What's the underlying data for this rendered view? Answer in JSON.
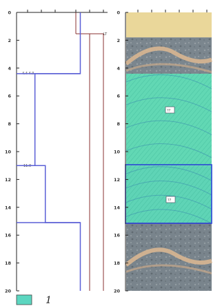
{
  "depth_axis": {
    "ticks": [
      "0",
      "2",
      "4",
      "6",
      "8",
      "10",
      "12",
      "14",
      "16",
      "18",
      "20"
    ]
  },
  "profile": {
    "line_color": "#5a5fd6",
    "reference_color": "#8a3030",
    "label_top": "LT",
    "label_mid": "4.4 4.0",
    "label_low": "11.0",
    "steps": [
      {
        "from_depth": 0,
        "to_depth": 4.4,
        "level": 0.92
      },
      {
        "from_depth": 4.4,
        "to_depth": 11.0,
        "level": 0.22
      },
      {
        "from_depth": 11.0,
        "to_depth": 15.1,
        "level": 0.38
      },
      {
        "from_depth": 15.1,
        "to_depth": 20,
        "level": 0.92
      }
    ]
  },
  "core": {
    "sections": [
      {
        "from_depth": 0,
        "to_depth": 1.8,
        "kind": "sand",
        "color": "#ead79a"
      },
      {
        "from_depth": 1.8,
        "to_depth": 4.4,
        "kind": "rock",
        "color": "#7d8890"
      },
      {
        "from_depth": 4.4,
        "to_depth": 11.0,
        "kind": "mineral",
        "color": "#62d8b4"
      },
      {
        "from_depth": 11.0,
        "to_depth": 15.1,
        "kind": "mineral-boxed",
        "color": "#5fd4b6"
      },
      {
        "from_depth": 15.1,
        "to_depth": 20,
        "kind": "rock",
        "color": "#6c7880"
      }
    ],
    "box_color": "#2a44d6",
    "tag_upper": "??",
    "tag_lower": "??"
  },
  "legend": {
    "swatch_color": "#5cd6c0",
    "label": "1"
  }
}
